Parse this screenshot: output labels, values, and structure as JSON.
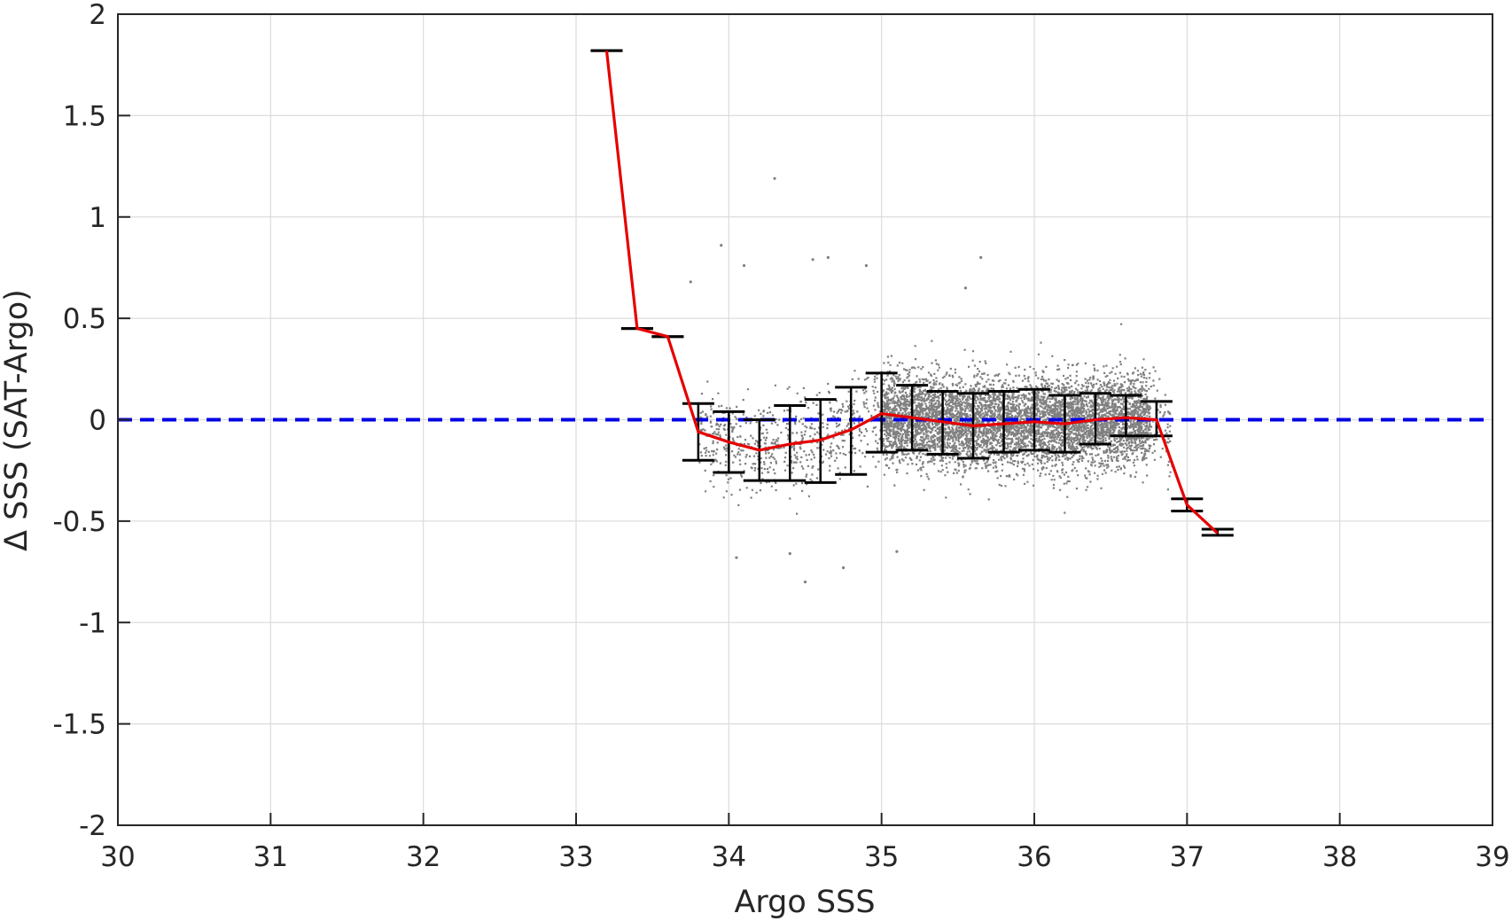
{
  "chart_data": {
    "type": "scatter",
    "title": "",
    "xlabel": "Argo SSS",
    "ylabel": "Δ SSS (SAT-Argo)",
    "xlim": [
      30,
      39
    ],
    "ylim": [
      -2,
      2
    ],
    "xticks": [
      "30",
      "31",
      "32",
      "33",
      "34",
      "35",
      "36",
      "37",
      "38",
      "39"
    ],
    "yticks": [
      "-2",
      "-1.5",
      "-1",
      "-0.5",
      "0",
      "0.5",
      "1",
      "1.5",
      "2"
    ],
    "grid": true,
    "reference_line": {
      "y": 0,
      "style": "dashed",
      "color": "#0000e6"
    },
    "colors": {
      "scatter": "#808080",
      "mean": "#e60000",
      "errorbar": "#000000"
    },
    "mean_series": {
      "x": [
        33.2,
        33.4,
        33.6,
        33.8,
        34.0,
        34.2,
        34.4,
        34.6,
        34.8,
        35.0,
        35.2,
        35.4,
        35.6,
        35.8,
        36.0,
        36.2,
        36.4,
        36.6,
        36.8,
        37.0,
        37.2
      ],
      "y": [
        1.82,
        0.45,
        0.41,
        -0.06,
        -0.11,
        -0.15,
        -0.12,
        -0.1,
        -0.05,
        0.03,
        0.01,
        -0.01,
        -0.03,
        -0.02,
        -0.01,
        -0.02,
        0.0,
        0.01,
        0.0,
        -0.42,
        -0.56
      ],
      "lower": [
        1.82,
        0.45,
        0.41,
        -0.2,
        -0.26,
        -0.3,
        -0.3,
        -0.31,
        -0.27,
        -0.16,
        -0.15,
        -0.17,
        -0.19,
        -0.16,
        -0.15,
        -0.16,
        -0.12,
        -0.08,
        -0.08,
        -0.45,
        -0.57
      ],
      "upper": [
        1.82,
        0.45,
        0.41,
        0.08,
        0.04,
        0.0,
        0.07,
        0.1,
        0.16,
        0.23,
        0.17,
        0.14,
        0.13,
        0.14,
        0.15,
        0.12,
        0.13,
        0.12,
        0.09,
        -0.39,
        -0.54
      ]
    },
    "scatter_distribution": {
      "description_count": 22000,
      "clusters": [
        {
          "x_range": [
            33.8,
            36.9
          ],
          "y_center": -0.05,
          "y_spread": 0.13
        }
      ],
      "outliers": [
        [
          34.3,
          1.19
        ],
        [
          33.95,
          0.86
        ],
        [
          34.1,
          0.76
        ],
        [
          34.55,
          0.79
        ],
        [
          34.65,
          0.8
        ],
        [
          35.65,
          0.8
        ],
        [
          34.9,
          0.76
        ],
        [
          33.75,
          0.68
        ],
        [
          35.55,
          0.65
        ],
        [
          34.5,
          -0.8
        ],
        [
          34.75,
          -0.73
        ],
        [
          34.05,
          -0.68
        ],
        [
          35.1,
          -0.65
        ],
        [
          34.4,
          -0.66
        ]
      ]
    }
  }
}
